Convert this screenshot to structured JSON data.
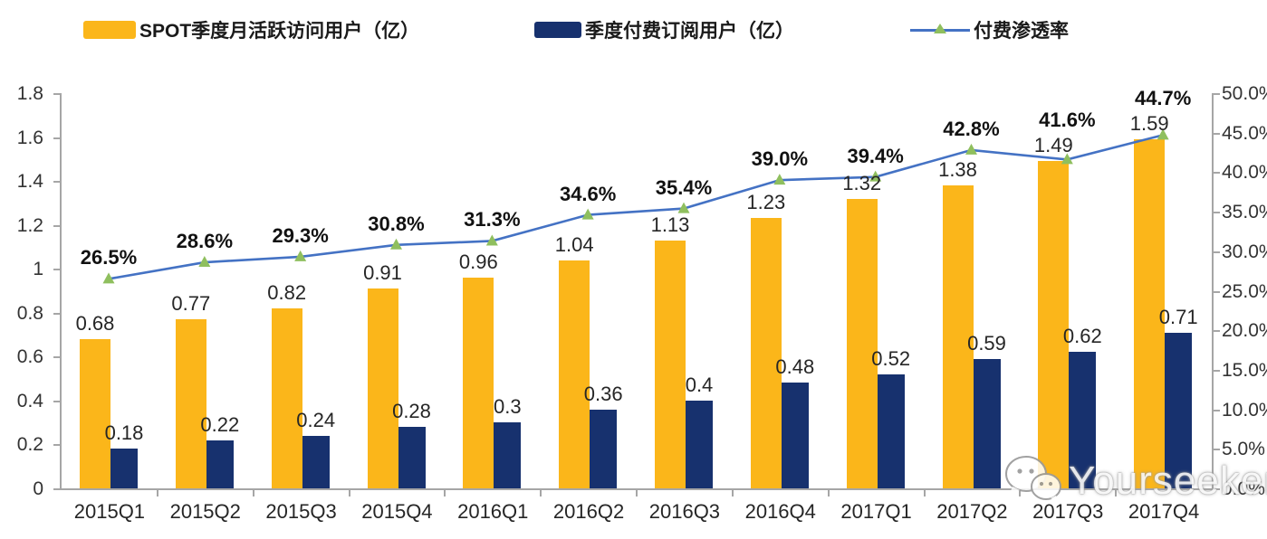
{
  "legend": {
    "items": [
      {
        "label": "SPOT季度月活跃访问用户（亿）",
        "type": "bar",
        "color": "#FBB61A"
      },
      {
        "label": "季度付费订阅用户（亿）",
        "type": "bar",
        "color": "#17316E"
      },
      {
        "label": "付费渗透率",
        "type": "line",
        "color": "#4472C4",
        "marker_color": "#8FBF5E"
      }
    ]
  },
  "chart_data": {
    "type": "bar+line combo",
    "categories": [
      "2015Q1",
      "2015Q2",
      "2015Q3",
      "2015Q4",
      "2016Q1",
      "2016Q2",
      "2016Q3",
      "2016Q4",
      "2017Q1",
      "2017Q2",
      "2017Q3",
      "2017Q4"
    ],
    "series": [
      {
        "name": "SPOT季度月活跃访问用户（亿）",
        "type": "bar",
        "axis": "left",
        "color": "#FBB61A",
        "values": [
          0.68,
          0.77,
          0.82,
          0.91,
          0.96,
          1.04,
          1.13,
          1.23,
          1.32,
          1.38,
          1.49,
          1.59
        ],
        "labels": [
          "0.68",
          "0.77",
          "0.82",
          "0.91",
          "0.96",
          "1.04",
          "1.13",
          "1.23",
          "1.32",
          "1.38",
          "1.49",
          "1.59"
        ]
      },
      {
        "name": "季度付费订阅用户（亿）",
        "type": "bar",
        "axis": "left",
        "color": "#17316E",
        "values": [
          0.18,
          0.22,
          0.24,
          0.28,
          0.3,
          0.36,
          0.4,
          0.48,
          0.52,
          0.59,
          0.62,
          0.71
        ],
        "labels": [
          "0.18",
          "0.22",
          "0.24",
          "0.28",
          "0.3",
          "0.36",
          "0.4",
          "0.48",
          "0.52",
          "0.59",
          "0.62",
          "0.71"
        ]
      },
      {
        "name": "付费渗透率",
        "type": "line",
        "axis": "right",
        "color": "#4472C4",
        "marker": "triangle",
        "marker_color": "#8FBF5E",
        "values": [
          26.5,
          28.6,
          29.3,
          30.8,
          31.3,
          34.6,
          35.4,
          39.0,
          39.4,
          42.8,
          41.6,
          44.7
        ],
        "labels": [
          "26.5%",
          "28.6%",
          "29.3%",
          "30.8%",
          "31.3%",
          "34.6%",
          "35.4%",
          "39.0%",
          "39.4%",
          "42.8%",
          "41.6%",
          "44.7%"
        ]
      }
    ],
    "left_axis": {
      "min": 0,
      "max": 1.8,
      "step": 0.2,
      "ticks": [
        "1.8",
        "1.6",
        "1.4",
        "1.2",
        "1",
        "0.8",
        "0.6",
        "0.4",
        "0.2",
        "0"
      ]
    },
    "right_axis": {
      "min": 0,
      "max": 50,
      "step": 5,
      "ticks": [
        "50.0%",
        "45.0%",
        "40.0%",
        "35.0%",
        "30.0%",
        "25.0%",
        "20.0%",
        "15.0%",
        "10.0%",
        "5.0%",
        "0.0%"
      ]
    },
    "grid": false,
    "legend_position": "top"
  },
  "watermark": {
    "text": "Yourseeker",
    "icon": "wechat-icon"
  },
  "colors": {
    "mau_bar": "#FBB61A",
    "subs_bar": "#17316E",
    "line": "#4472C4",
    "marker": "#8FBF5E",
    "axis": "#a6a6a6",
    "text": "#262626"
  }
}
